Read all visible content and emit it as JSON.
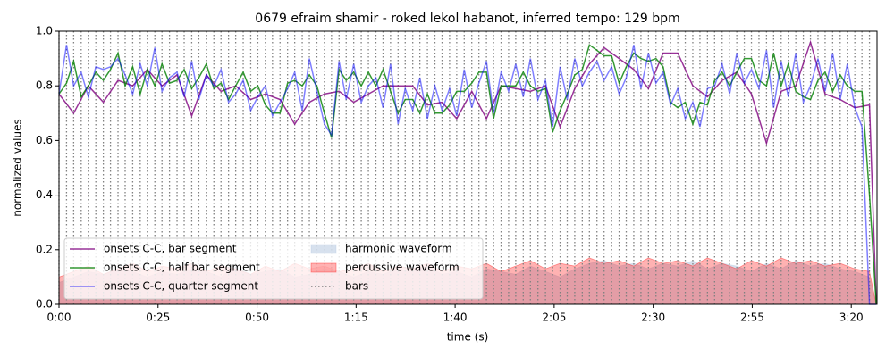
{
  "chart_data": {
    "type": "line",
    "title": "0679 efraim shamir - roked lekol habanot, inferred tempo: 129 bpm",
    "x_label": "time (s)",
    "y_label": "normalized values",
    "xlim": [
      0,
      206.5
    ],
    "ylim": [
      0,
      1
    ],
    "xticks": [
      {
        "value": 0,
        "label": "0:00"
      },
      {
        "value": 25,
        "label": "0:25"
      },
      {
        "value": 50,
        "label": "0:50"
      },
      {
        "value": 75,
        "label": "1:15"
      },
      {
        "value": 100,
        "label": "1:40"
      },
      {
        "value": 125,
        "label": "2:05"
      },
      {
        "value": 150,
        "label": "2:30"
      },
      {
        "value": 175,
        "label": "2:55"
      },
      {
        "value": 200,
        "label": "3:20"
      }
    ],
    "yticks": [
      {
        "value": 0,
        "label": "0.0"
      },
      0.2,
      0.4,
      0.6,
      0.8,
      {
        "value": 1,
        "label": "1.0"
      }
    ],
    "legend": "lower left",
    "x": [
      0,
      1.9,
      3.7,
      5.6,
      7.4,
      9.3,
      11.2,
      13,
      14.9,
      16.7,
      18.6,
      20.5,
      22.3,
      24.2,
      26,
      27.9,
      29.8,
      31.6,
      33.5,
      35.3,
      37.2,
      39.1,
      40.9,
      42.8,
      44.6,
      46.5,
      48.4,
      50.2,
      52.1,
      53.9,
      55.8,
      57.7,
      59.5,
      61.4,
      63.2,
      65.1,
      67,
      68.8,
      70.7,
      72.5,
      74.4,
      76.3,
      78.1,
      80,
      81.8,
      83.7,
      85.6,
      87.4,
      89.3,
      91.1,
      93,
      94.9,
      96.7,
      98.6,
      100.4,
      102.3,
      104.2,
      106,
      107.9,
      109.7,
      111.6,
      113.5,
      115.3,
      117.2,
      119,
      120.9,
      122.8,
      124.6,
      126.5,
      128.3,
      130.2,
      132.1,
      133.9,
      135.8,
      137.6,
      139.5,
      141.4,
      143.2,
      145.1,
      146.9,
      148.8,
      150.7,
      152.5,
      154.4,
      156.2,
      158.1,
      160,
      161.8,
      163.7,
      165.5,
      167.4,
      169.3,
      171.1,
      173,
      174.8,
      176.7,
      178.6,
      180.4,
      182.3,
      184.1,
      186,
      187.9,
      189.7,
      191.6,
      193.4,
      195.3,
      197.2,
      199,
      200.9,
      202.7,
      204.6,
      206.3
    ],
    "series": [
      {
        "name": "onsets C-C, bar segment",
        "kind": "line",
        "color": "#800080",
        "x": [
          0,
          3.7,
          7.4,
          11.2,
          14.9,
          18.6,
          22.3,
          26,
          29.8,
          33.5,
          37.2,
          40.9,
          44.6,
          48.4,
          52.1,
          55.8,
          59.5,
          63.2,
          67,
          70.7,
          74.4,
          78.1,
          81.8,
          85.6,
          89.3,
          93,
          96.7,
          100.4,
          104.2,
          107.9,
          111.6,
          115.3,
          119,
          122.8,
          126.5,
          130.2,
          133.9,
          137.6,
          141.4,
          145.1,
          148.8,
          152.5,
          156.2,
          160,
          163.7,
          167.4,
          171.1,
          174.8,
          178.6,
          182.3,
          186,
          189.7,
          193.4,
          197.2,
          200.9,
          204.6,
          206.3
        ],
        "values": [
          0.77,
          0.7,
          0.8,
          0.74,
          0.82,
          0.8,
          0.86,
          0.8,
          0.84,
          0.69,
          0.84,
          0.78,
          0.8,
          0.75,
          0.77,
          0.75,
          0.66,
          0.74,
          0.77,
          0.78,
          0.74,
          0.77,
          0.8,
          0.8,
          0.8,
          0.73,
          0.74,
          0.68,
          0.78,
          0.68,
          0.8,
          0.79,
          0.78,
          0.8,
          0.65,
          0.79,
          0.88,
          0.94,
          0.9,
          0.86,
          0.79,
          0.92,
          0.92,
          0.8,
          0.76,
          0.82,
          0.85,
          0.77,
          0.59,
          0.78,
          0.8,
          0.96,
          0.77,
          0.75,
          0.72,
          0.73,
          0.0
        ]
      },
      {
        "name": "onsets C-C, half bar segment",
        "kind": "line",
        "color": "#008000",
        "values": [
          0.77,
          0.81,
          0.89,
          0.76,
          0.8,
          0.85,
          0.82,
          0.86,
          0.92,
          0.8,
          0.87,
          0.77,
          0.86,
          0.8,
          0.88,
          0.81,
          0.82,
          0.86,
          0.79,
          0.83,
          0.88,
          0.79,
          0.81,
          0.75,
          0.8,
          0.85,
          0.78,
          0.8,
          0.73,
          0.7,
          0.7,
          0.81,
          0.82,
          0.8,
          0.84,
          0.8,
          0.7,
          0.61,
          0.86,
          0.82,
          0.85,
          0.8,
          0.85,
          0.8,
          0.86,
          0.78,
          0.7,
          0.75,
          0.75,
          0.7,
          0.77,
          0.7,
          0.7,
          0.73,
          0.78,
          0.78,
          0.81,
          0.85,
          0.85,
          0.68,
          0.8,
          0.8,
          0.8,
          0.85,
          0.8,
          0.78,
          0.79,
          0.63,
          0.71,
          0.77,
          0.84,
          0.86,
          0.95,
          0.93,
          0.91,
          0.91,
          0.81,
          0.87,
          0.92,
          0.9,
          0.89,
          0.9,
          0.87,
          0.74,
          0.72,
          0.74,
          0.66,
          0.74,
          0.73,
          0.82,
          0.85,
          0.8,
          0.85,
          0.9,
          0.9,
          0.82,
          0.8,
          0.92,
          0.8,
          0.88,
          0.78,
          0.76,
          0.75,
          0.82,
          0.85,
          0.78,
          0.84,
          0.8,
          0.78,
          0.78,
          0.4,
          0.0
        ]
      },
      {
        "name": "onsets C-C, quarter segment",
        "kind": "line",
        "color": "#0000ff",
        "values": [
          0.77,
          0.95,
          0.8,
          0.85,
          0.76,
          0.87,
          0.86,
          0.87,
          0.9,
          0.84,
          0.77,
          0.88,
          0.8,
          0.94,
          0.78,
          0.83,
          0.85,
          0.76,
          0.89,
          0.75,
          0.84,
          0.8,
          0.86,
          0.74,
          0.77,
          0.82,
          0.71,
          0.76,
          0.8,
          0.69,
          0.74,
          0.79,
          0.85,
          0.71,
          0.9,
          0.78,
          0.66,
          0.62,
          0.89,
          0.75,
          0.88,
          0.74,
          0.8,
          0.83,
          0.72,
          0.88,
          0.66,
          0.79,
          0.71,
          0.83,
          0.68,
          0.8,
          0.71,
          0.79,
          0.69,
          0.86,
          0.72,
          0.81,
          0.89,
          0.7,
          0.85,
          0.78,
          0.88,
          0.76,
          0.9,
          0.75,
          0.82,
          0.65,
          0.87,
          0.75,
          0.9,
          0.8,
          0.85,
          0.89,
          0.82,
          0.87,
          0.77,
          0.83,
          0.95,
          0.79,
          0.92,
          0.81,
          0.85,
          0.73,
          0.79,
          0.68,
          0.74,
          0.65,
          0.79,
          0.8,
          0.88,
          0.77,
          0.92,
          0.81,
          0.86,
          0.79,
          0.93,
          0.72,
          0.89,
          0.76,
          0.92,
          0.74,
          0.8,
          0.9,
          0.78,
          0.92,
          0.75,
          0.88,
          0.72,
          0.65,
          0.0,
          0.0
        ]
      },
      {
        "name": "harmonic waveform",
        "kind": "area",
        "color": "#b0c4de",
        "x": [
          0,
          3.7,
          7.4,
          11.2,
          14.9,
          18.6,
          22.3,
          26,
          29.8,
          33.5,
          37.2,
          40.9,
          44.6,
          48.4,
          52.1,
          55.8,
          59.5,
          63.2,
          67,
          70.7,
          74.4,
          78.1,
          81.8,
          85.6,
          89.3,
          93,
          96.7,
          100.4,
          104.2,
          107.9,
          111.6,
          115.3,
          119,
          122.8,
          126.5,
          130.2,
          133.9,
          137.6,
          141.4,
          145.1,
          148.8,
          152.5,
          156.2,
          160,
          163.7,
          167.4,
          171.1,
          174.8,
          178.6,
          182.3,
          186,
          189.7,
          193.4,
          197.2,
          200.9,
          204.6,
          206.3
        ],
        "values": [
          0.08,
          0.1,
          0.12,
          0.11,
          0.13,
          0.12,
          0.1,
          0.12,
          0.11,
          0.13,
          0.12,
          0.1,
          0.14,
          0.11,
          0.12,
          0.13,
          0.1,
          0.11,
          0.13,
          0.12,
          0.1,
          0.12,
          0.11,
          0.13,
          0.12,
          0.14,
          0.11,
          0.12,
          0.1,
          0.13,
          0.12,
          0.11,
          0.14,
          0.12,
          0.1,
          0.13,
          0.15,
          0.16,
          0.14,
          0.15,
          0.13,
          0.15,
          0.14,
          0.16,
          0.13,
          0.15,
          0.14,
          0.12,
          0.15,
          0.13,
          0.16,
          0.14,
          0.15,
          0.13,
          0.12,
          0.1,
          0.0
        ]
      },
      {
        "name": "percussive waveform",
        "kind": "area",
        "color": "#ff0000",
        "x": [
          0,
          3.7,
          7.4,
          11.2,
          14.9,
          18.6,
          22.3,
          26,
          29.8,
          33.5,
          37.2,
          40.9,
          44.6,
          48.4,
          52.1,
          55.8,
          59.5,
          63.2,
          67,
          70.7,
          74.4,
          78.1,
          81.8,
          85.6,
          89.3,
          93,
          96.7,
          100.4,
          104.2,
          107.9,
          111.6,
          115.3,
          119,
          122.8,
          126.5,
          130.2,
          133.9,
          137.6,
          141.4,
          145.1,
          148.8,
          152.5,
          156.2,
          160,
          163.7,
          167.4,
          171.1,
          174.8,
          178.6,
          182.3,
          186,
          189.7,
          193.4,
          197.2,
          200.9,
          204.6,
          206.3
        ],
        "values": [
          0.1,
          0.12,
          0.14,
          0.11,
          0.13,
          0.15,
          0.12,
          0.14,
          0.13,
          0.15,
          0.12,
          0.14,
          0.13,
          0.11,
          0.14,
          0.12,
          0.15,
          0.13,
          0.14,
          0.12,
          0.13,
          0.15,
          0.12,
          0.14,
          0.13,
          0.15,
          0.12,
          0.14,
          0.13,
          0.15,
          0.12,
          0.14,
          0.16,
          0.13,
          0.15,
          0.14,
          0.17,
          0.15,
          0.16,
          0.14,
          0.17,
          0.15,
          0.16,
          0.14,
          0.17,
          0.15,
          0.13,
          0.16,
          0.14,
          0.17,
          0.15,
          0.16,
          0.14,
          0.15,
          0.13,
          0.12,
          0.0
        ]
      },
      {
        "name": "bars",
        "kind": "vlines",
        "color": "#808080",
        "x": [
          0,
          1.9,
          3.7,
          5.6,
          7.4,
          9.3,
          11.2,
          13,
          14.9,
          16.7,
          18.6,
          20.5,
          22.3,
          24.2,
          26,
          27.9,
          29.8,
          31.6,
          33.5,
          35.3,
          37.2,
          39.1,
          40.9,
          42.8,
          44.6,
          46.5,
          48.4,
          50.2,
          52.1,
          53.9,
          55.8,
          57.7,
          59.5,
          61.4,
          63.2,
          65.1,
          67,
          68.8,
          70.7,
          72.5,
          74.4,
          76.3,
          78.1,
          80,
          81.8,
          83.7,
          85.6,
          87.4,
          89.3,
          91.1,
          93,
          94.9,
          96.7,
          98.6,
          100.4,
          102.3,
          104.2,
          106,
          107.9,
          109.7,
          111.6,
          113.5,
          115.3,
          117.2,
          119,
          120.9,
          122.8,
          124.6,
          126.5,
          128.3,
          130.2,
          132.1,
          133.9,
          135.8,
          137.6,
          139.5,
          141.4,
          143.2,
          145.1,
          146.9,
          148.8,
          150.7,
          152.5,
          154.4,
          156.2,
          158.1,
          160,
          161.8,
          163.7,
          165.5,
          167.4,
          169.3,
          171.1,
          173,
          174.8,
          176.7,
          178.6,
          180.4,
          182.3,
          184.1,
          186,
          187.9,
          189.7,
          191.6,
          193.4,
          195.3,
          197.2,
          199,
          200.9,
          202.7,
          204.6
        ]
      }
    ]
  }
}
